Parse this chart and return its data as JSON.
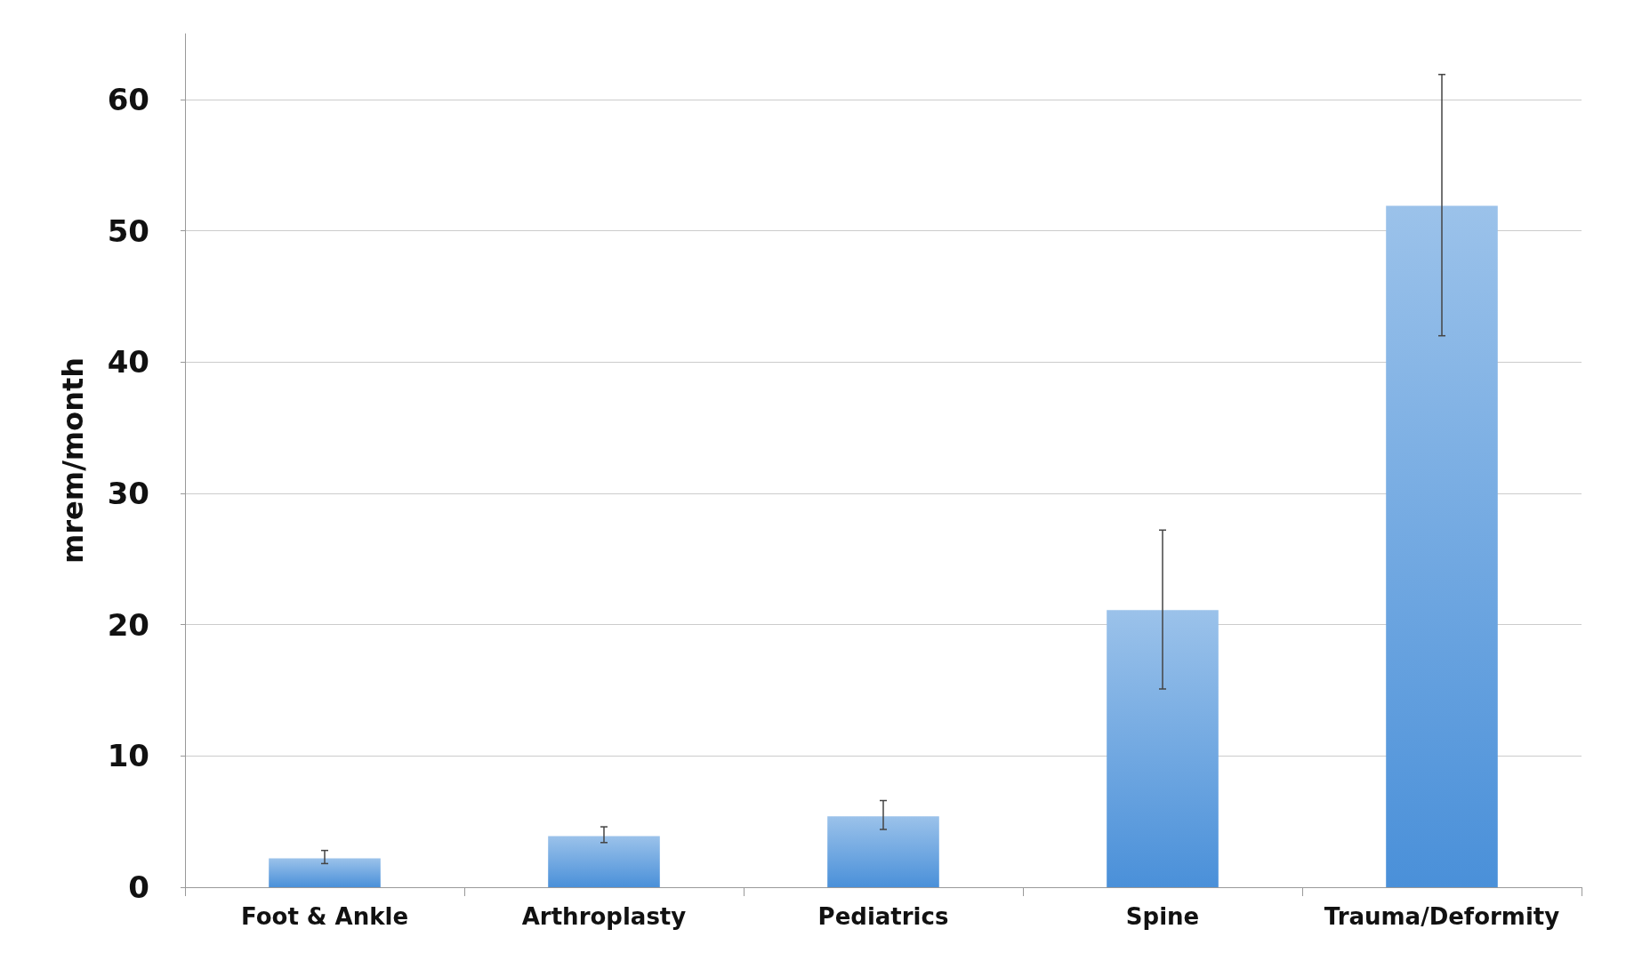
{
  "chart_data": {
    "type": "bar",
    "ylabel": "mrem/month",
    "categories": [
      "Foot & Ankle",
      "Arthroplasty",
      "Pediatrics",
      "Spine",
      "Trauma/Deformity"
    ],
    "values": [
      2.2,
      3.9,
      5.4,
      21.1,
      51.9
    ],
    "errors": [
      [
        1.8,
        2.8
      ],
      [
        3.4,
        4.6
      ],
      [
        4.4,
        6.6
      ],
      [
        15.1,
        27.2
      ],
      [
        42.0,
        61.9
      ]
    ],
    "color": "#4a90d9",
    "ylim": [
      0,
      65
    ],
    "yticks": [
      0,
      10,
      20,
      30,
      40,
      50,
      60
    ],
    "grid": "y"
  }
}
